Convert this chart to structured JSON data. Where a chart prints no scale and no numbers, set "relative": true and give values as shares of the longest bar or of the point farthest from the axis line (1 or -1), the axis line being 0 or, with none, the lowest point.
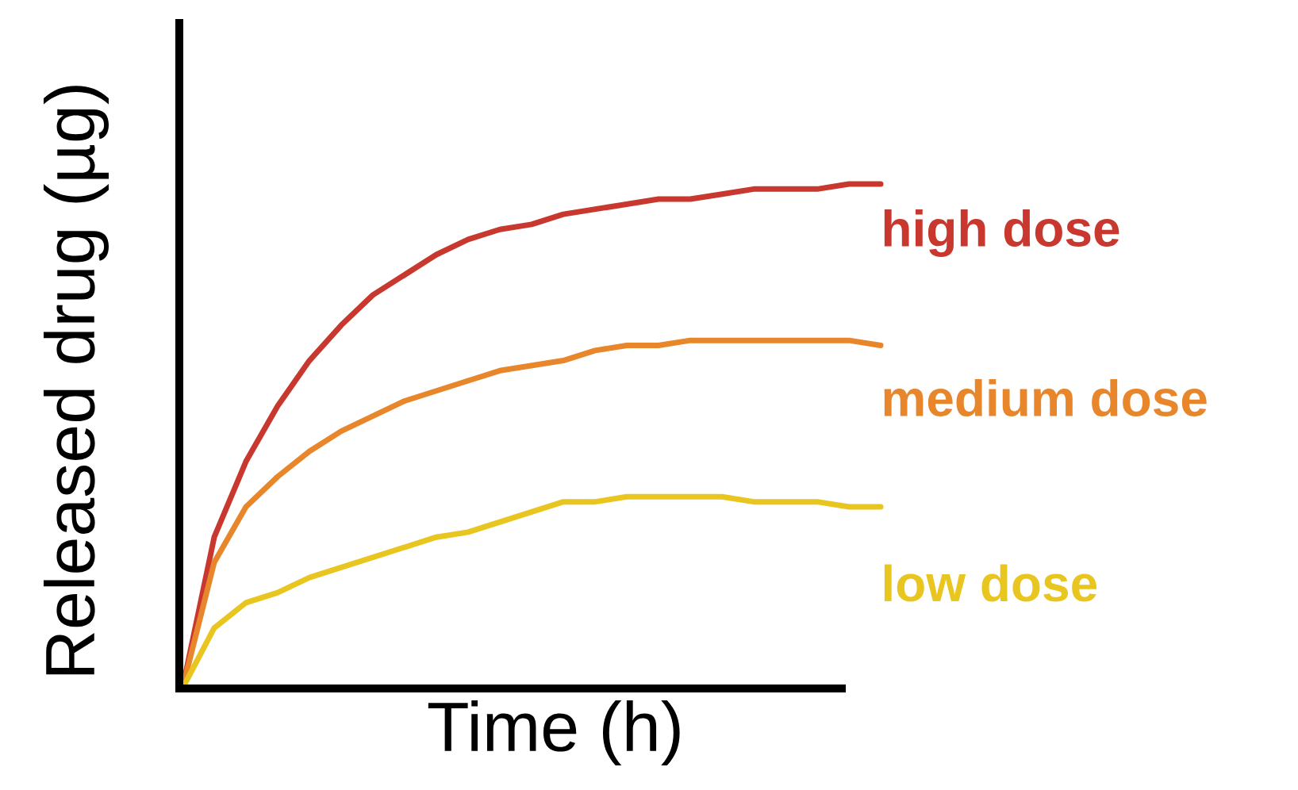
{
  "chart_data": {
    "type": "line",
    "relative": true,
    "xlabel": "Time (h)",
    "ylabel": "Released drug (µg)",
    "categories": [
      null,
      null,
      null,
      null,
      null,
      null,
      null,
      null,
      null,
      null,
      null,
      null,
      null,
      null,
      null,
      null,
      null,
      null,
      null,
      null,
      null,
      null,
      null
    ],
    "series": [
      {
        "name": "high dose",
        "color": "#c8382f",
        "values": [
          0,
          0.3,
          0.45,
          0.56,
          0.65,
          0.72,
          0.78,
          0.82,
          0.86,
          0.89,
          0.91,
          0.92,
          0.94,
          0.95,
          0.96,
          0.97,
          0.97,
          0.98,
          0.99,
          0.99,
          0.99,
          1.0,
          1.0
        ]
      },
      {
        "name": "medium dose",
        "color": "#e8862c",
        "values": [
          0,
          0.25,
          0.36,
          0.42,
          0.47,
          0.51,
          0.54,
          0.57,
          0.59,
          0.61,
          0.63,
          0.64,
          0.65,
          0.67,
          0.68,
          0.68,
          0.69,
          0.69,
          0.69,
          0.69,
          0.69,
          0.69,
          0.68
        ]
      },
      {
        "name": "low dose",
        "color": "#e8c51f",
        "values": [
          0,
          0.12,
          0.17,
          0.19,
          0.22,
          0.24,
          0.26,
          0.28,
          0.3,
          0.31,
          0.33,
          0.35,
          0.37,
          0.37,
          0.38,
          0.38,
          0.38,
          0.38,
          0.37,
          0.37,
          0.37,
          0.36,
          0.36
        ]
      }
    ],
    "legend": false,
    "marker": "none",
    "line_style": "solid"
  }
}
